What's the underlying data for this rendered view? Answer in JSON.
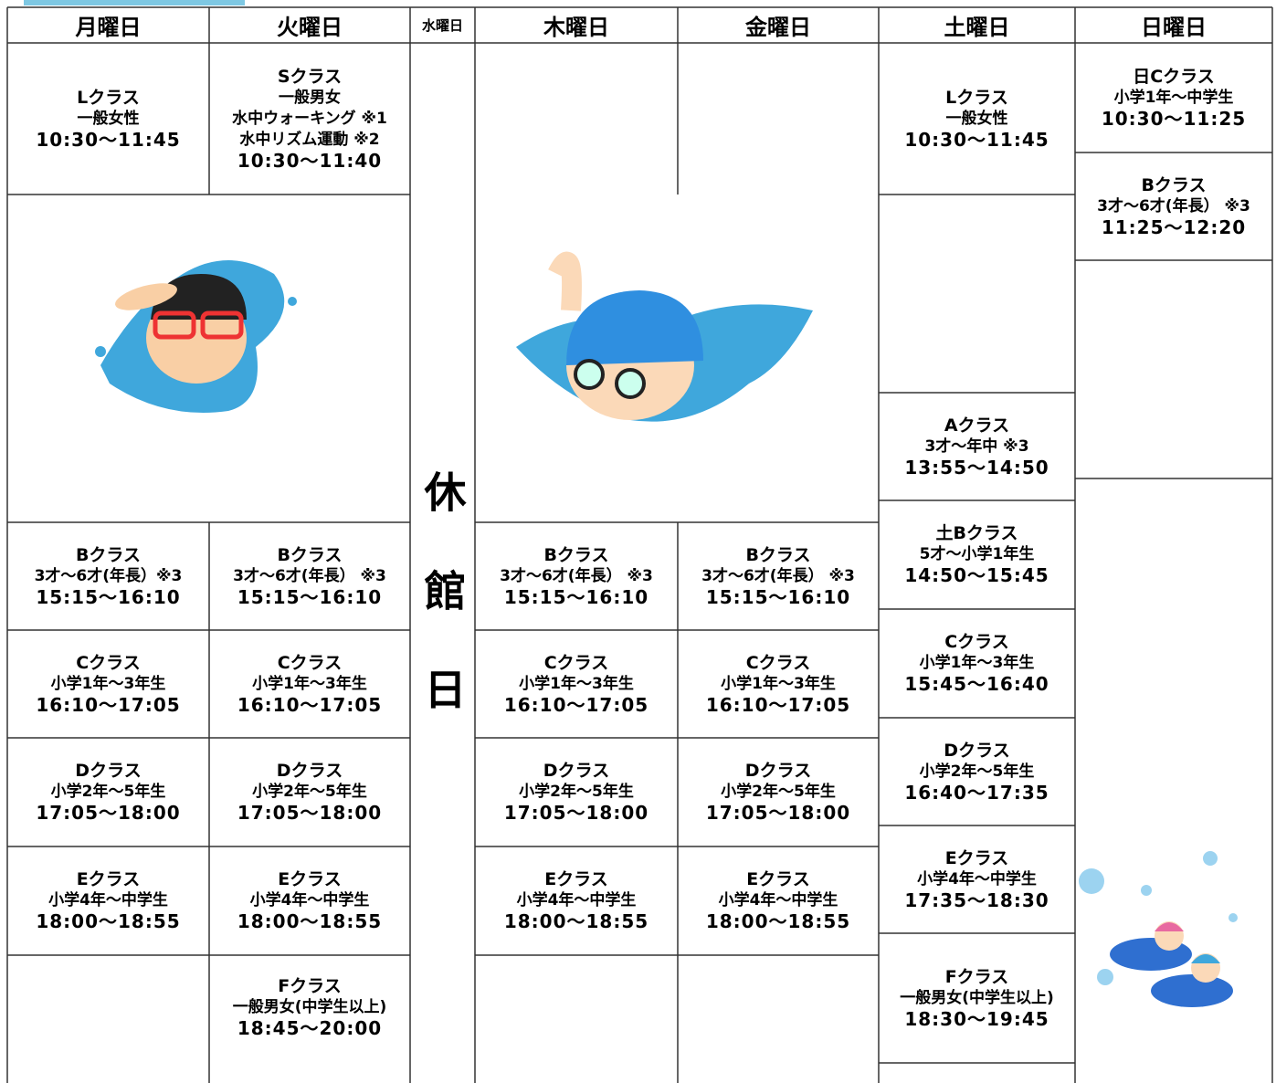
{
  "header": {
    "days": [
      "月曜日",
      "火曜日",
      "水曜日",
      "木曜日",
      "金曜日",
      "土曜日",
      "日曜日"
    ]
  },
  "closed": "休館日",
  "schedule": {
    "monday": [
      [
        "Lクラス",
        "一般女性",
        "10:30～11:45"
      ],
      [
        "Bクラス",
        "3才～6才(年長）※3",
        "15:15～16:10"
      ],
      [
        "Cクラス",
        "小学1年～3年生",
        "16:10～17:05"
      ],
      [
        "Dクラス",
        "小学2年～5年生",
        "17:05～18:00"
      ],
      [
        "Eクラス",
        "小学4年～中学生",
        "18:00～18:55"
      ]
    ],
    "tuesday": [
      [
        "Sクラス",
        "一般男女",
        "水中ウォーキング ※1",
        "水中リズム運動 ※2",
        "10:30～11:40"
      ],
      [
        "Bクラス",
        "3才～6才(年長） ※3",
        "15:15～16:10"
      ],
      [
        "Cクラス",
        "小学1年～3年生",
        "16:10～17:05"
      ],
      [
        "Dクラス",
        "小学2年～5年生",
        "17:05～18:00"
      ],
      [
        "Eクラス",
        "小学4年～中学生",
        "18:00～18:55"
      ],
      [
        "Fクラス",
        "一般男女(中学生以上)",
        "18:45～20:00"
      ]
    ],
    "thursday": [
      [
        "Bクラス",
        "3才～6才(年長） ※3",
        "15:15～16:10"
      ],
      [
        "Cクラス",
        "小学1年～3年生",
        "16:10～17:05"
      ],
      [
        "Dクラス",
        "小学2年～5年生",
        "17:05～18:00"
      ],
      [
        "Eクラス",
        "小学4年～中学生",
        "18:00～18:55"
      ]
    ],
    "friday": [
      [
        "Bクラス",
        "3才～6才(年長） ※3",
        "15:15～16:10"
      ],
      [
        "Cクラス",
        "小学1年～3年生",
        "16:10～17:05"
      ],
      [
        "Dクラス",
        "小学2年～5年生",
        "17:05～18:00"
      ],
      [
        "Eクラス",
        "小学4年～中学生",
        "18:00～18:55"
      ]
    ],
    "saturday": [
      [
        "Lクラス",
        "一般女性",
        "10:30～11:45"
      ],
      [
        "Aクラス",
        "3才～年中 ※3",
        "13:55～14:50"
      ],
      [
        "土Bクラス",
        "5才～小学1年生",
        "14:50～15:45"
      ],
      [
        "Cクラス",
        "小学1年～3年生",
        "15:45～16:40"
      ],
      [
        "Dクラス",
        "小学2年～5年生",
        "16:40～17:35"
      ],
      [
        "Eクラス",
        "小学4年～中学生",
        "17:35～18:30"
      ],
      [
        "Fクラス",
        "一般男女(中学生以上)",
        "18:30～19:45"
      ]
    ],
    "sunday": [
      [
        "日Cクラス",
        "小学1年～中学生",
        "10:30～11:25"
      ],
      [
        "Bクラス",
        "3才～6才(年長） ※3",
        "11:25～12:20"
      ]
    ]
  }
}
